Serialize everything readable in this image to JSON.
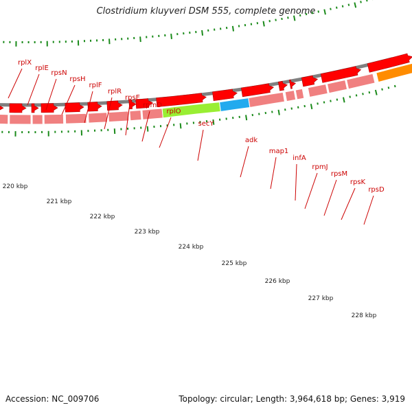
{
  "title": "Clostridium kluyveri DSM 555, complete genome",
  "footer": {
    "accession": "Accession: NC_009706",
    "stats": "Topology: circular; Length: 3,964,618 bp; Genes: 3,919"
  },
  "colors": {
    "gene_label": "#cc0000",
    "cds_forward": "#ff0000",
    "feature_generic": "#f08080",
    "feature_secY": "#99ee33",
    "feature_adk": "#22aaee",
    "feature_rpsD_next": "#ff8c00",
    "backbone": "#808080",
    "tick": "#1a8a1a",
    "scale_text": "#222222"
  },
  "gene_labels": [
    "rplX",
    "rplE",
    "rpsN",
    "rpsH",
    "rplF",
    "rplR",
    "rpsE",
    "rpmD",
    "rplO",
    "secY",
    "adk",
    "map1",
    "infA",
    "rpmJ",
    "rpsM",
    "rpsK",
    "rpsD"
  ],
  "scale_labels": [
    "220 kbp",
    "221 kbp",
    "222 kbp",
    "223 kbp",
    "224 kbp",
    "225 kbp",
    "226 kbp",
    "227 kbp",
    "228 kbp"
  ]
}
